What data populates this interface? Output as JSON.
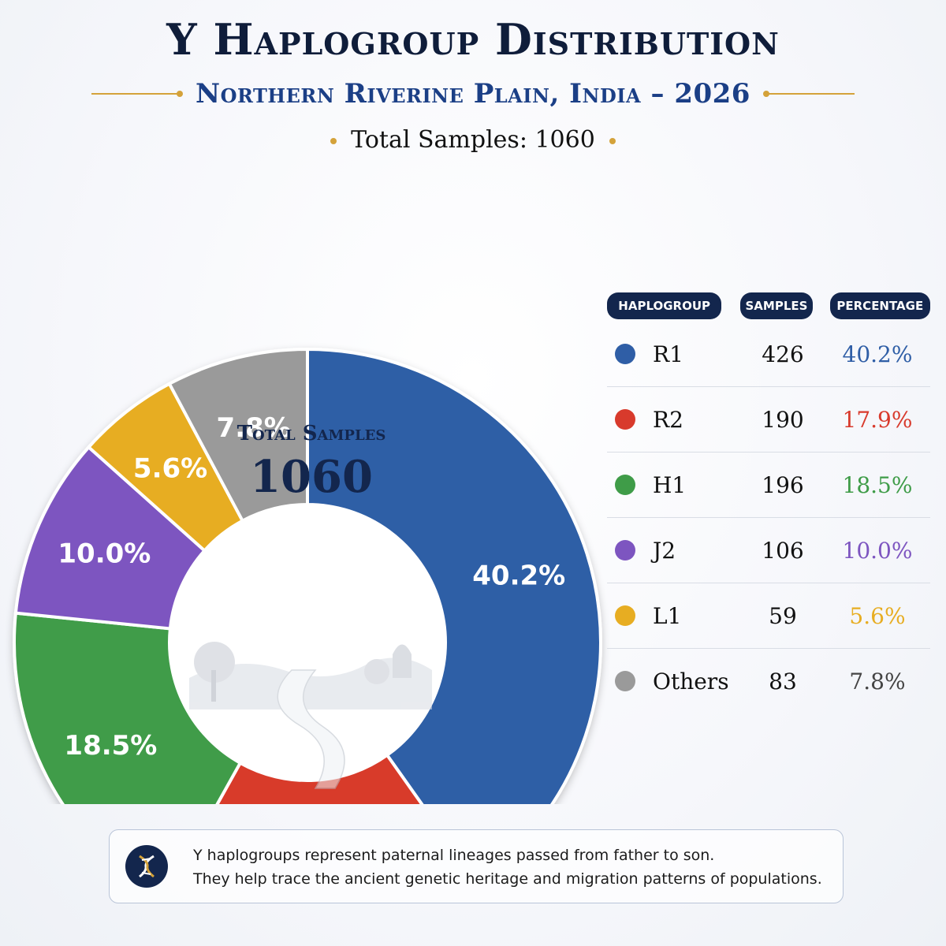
{
  "title": "Y Haplogroup Distribution",
  "subtitle": "Northern Riverine Plain, India – 2026",
  "total_top": "Total Samples: 1060",
  "center": {
    "label": "Total Samples",
    "value": "1060"
  },
  "table": {
    "headers": [
      "HAPLOGROUP",
      "SAMPLES",
      "PERCENTAGE"
    ],
    "rows": [
      {
        "name": "R1",
        "samples": "426",
        "pct": "40.2%"
      },
      {
        "name": "R2",
        "samples": "190",
        "pct": "17.9%"
      },
      {
        "name": "H1",
        "samples": "196",
        "pct": "18.5%"
      },
      {
        "name": "J2",
        "samples": "106",
        "pct": "10.0%"
      },
      {
        "name": "L1",
        "samples": "59",
        "pct": "5.6%"
      },
      {
        "name": "Others",
        "samples": "83",
        "pct": "7.8%"
      }
    ]
  },
  "note": {
    "line1": "Y haplogroups represent paternal lineages passed from father to son.",
    "line2": "They help trace the ancient genetic heritage and migration patterns of populations."
  },
  "colors": {
    "R1": "#2f5ea6",
    "R2": "#d83a2c",
    "H1": "#3f9c48",
    "J2": "#7d55c0",
    "L1": "#e7ad22",
    "Others": "#9a9a9a"
  },
  "chart_data": {
    "type": "pie",
    "categories": [
      "R1",
      "R2",
      "H1",
      "J2",
      "L1",
      "Others"
    ],
    "values": [
      40.2,
      17.9,
      18.5,
      10.0,
      5.6,
      7.8
    ],
    "labels": [
      "40.2%",
      "17.9%",
      "18.5%",
      "10.0%",
      "5.6%",
      "7.8%"
    ],
    "samples": [
      426,
      190,
      196,
      106,
      59,
      83
    ],
    "donut": true
  }
}
